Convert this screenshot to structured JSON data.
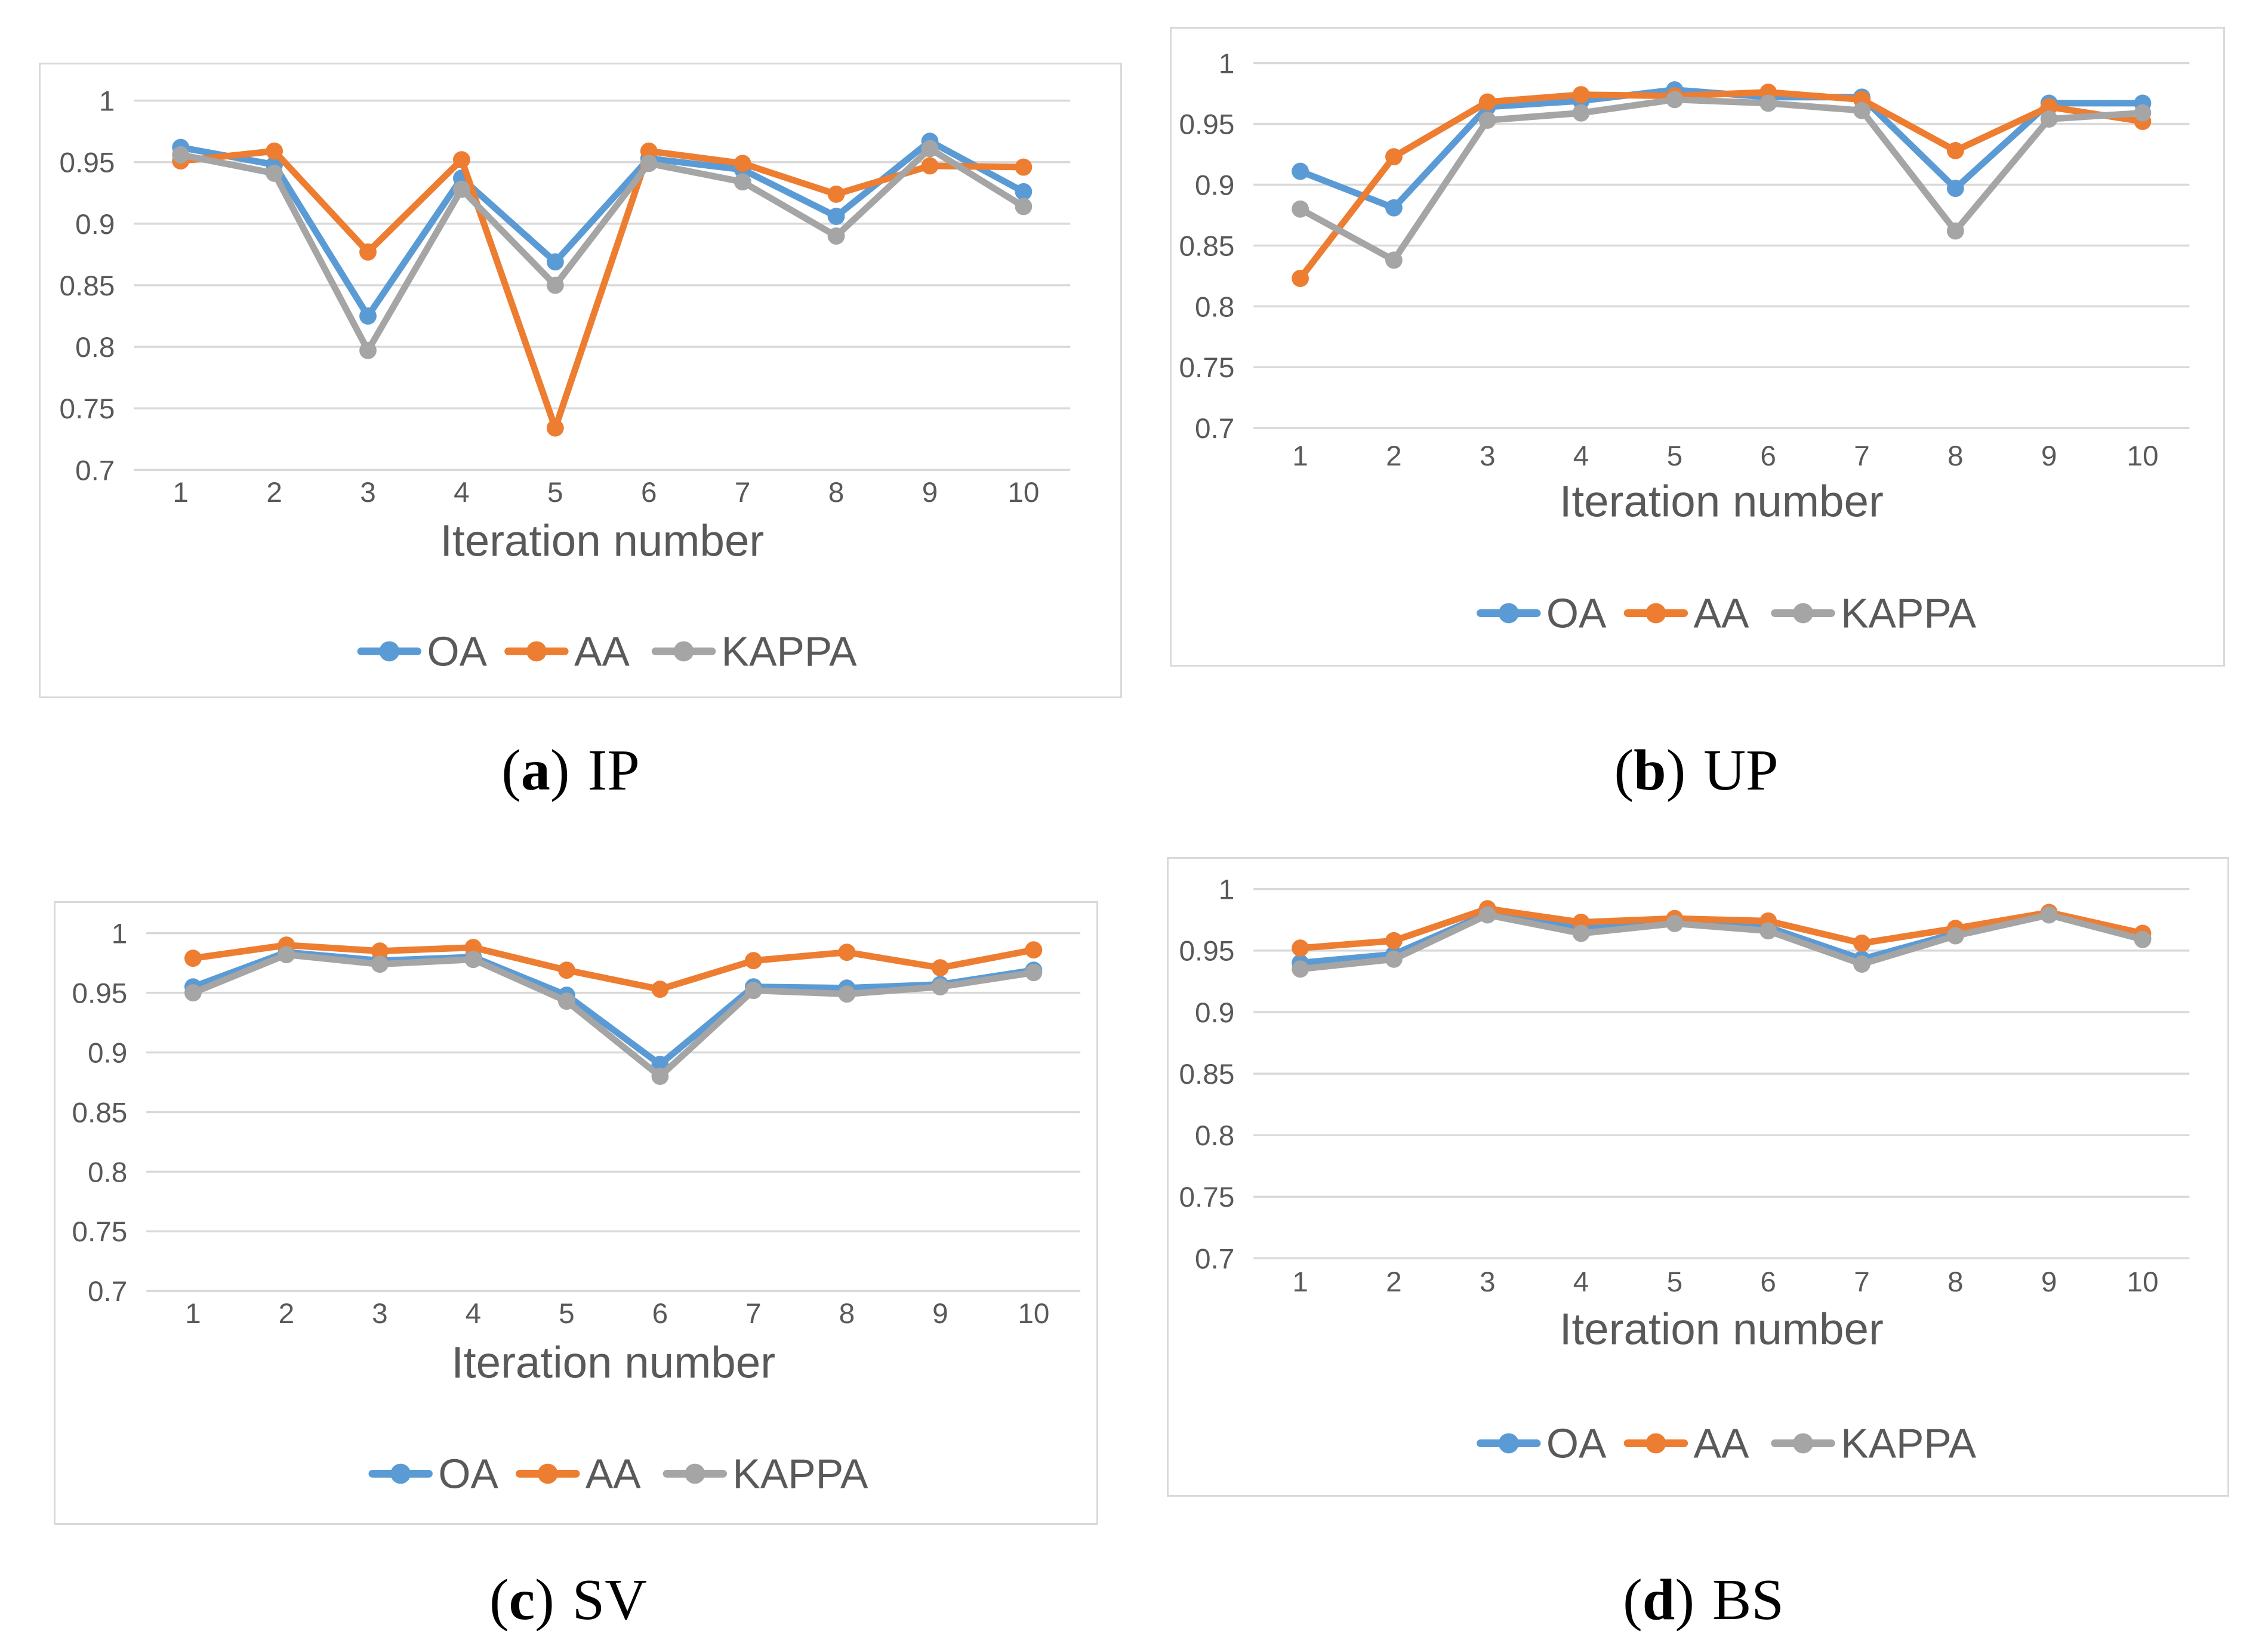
{
  "figure": {
    "background": "#FFFFFF",
    "captions": [
      {
        "prefix": "(",
        "letter": "a",
        "suffix": ")",
        "label": "IP"
      },
      {
        "prefix": "(",
        "letter": "b",
        "suffix": ")",
        "label": "UP"
      },
      {
        "prefix": "(",
        "letter": "c",
        "suffix": ")",
        "label": "SV"
      },
      {
        "prefix": "(",
        "letter": "d",
        "suffix": ")",
        "label": "BS"
      }
    ]
  },
  "style": {
    "grid_color": "#D9D9D9",
    "axis_text_color": "#595959",
    "panel_border_color": "#D9D9D9",
    "caption_color": "#000000",
    "series_colors": {
      "OA": "#5B9BD5",
      "AA": "#ED7D31",
      "KAPPA": "#A5A5A5"
    }
  },
  "chart_data": [
    {
      "type": "line",
      "panel": "a",
      "caption": "(a) IP",
      "xlabel": "Iteration number",
      "x": [
        1,
        2,
        3,
        4,
        5,
        6,
        7,
        8,
        9,
        10
      ],
      "ylim": [
        0.7,
        1.0
      ],
      "yticks": [
        1,
        0.95,
        0.9,
        0.85,
        0.8,
        0.75,
        0.7
      ],
      "ytick_labels": [
        "1",
        "0.95",
        "0.9",
        "0.85",
        "0.8",
        "0.75",
        "0.7"
      ],
      "grid": true,
      "legend_position": "bottom",
      "marker": "circle",
      "series": [
        {
          "name": "OA",
          "color": "#5B9BD5",
          "values": [
            0.962,
            0.948,
            0.825,
            0.937,
            0.869,
            0.953,
            0.944,
            0.906,
            0.967,
            0.926
          ]
        },
        {
          "name": "AA",
          "color": "#ED7D31",
          "values": [
            0.951,
            0.959,
            0.877,
            0.952,
            0.734,
            0.959,
            0.949,
            0.924,
            0.947,
            0.946
          ]
        },
        {
          "name": "KAPPA",
          "color": "#A5A5A5",
          "values": [
            0.956,
            0.941,
            0.797,
            0.928,
            0.85,
            0.949,
            0.934,
            0.89,
            0.961,
            0.914
          ]
        }
      ]
    },
    {
      "type": "line",
      "panel": "b",
      "caption": "(b) UP",
      "xlabel": "Iteration number",
      "x": [
        1,
        2,
        3,
        4,
        5,
        6,
        7,
        8,
        9,
        10
      ],
      "ylim": [
        0.7,
        1.0
      ],
      "yticks": [
        1,
        0.95,
        0.9,
        0.85,
        0.8,
        0.75,
        0.7
      ],
      "ytick_labels": [
        "1",
        "0.95",
        "0.9",
        "0.85",
        "0.8",
        "0.75",
        "0.7"
      ],
      "grid": true,
      "legend_position": "bottom",
      "marker": "circle",
      "series": [
        {
          "name": "OA",
          "color": "#5B9BD5",
          "values": [
            0.911,
            0.881,
            0.964,
            0.969,
            0.978,
            0.972,
            0.972,
            0.897,
            0.967,
            0.967
          ]
        },
        {
          "name": "AA",
          "color": "#ED7D31",
          "values": [
            0.823,
            0.923,
            0.968,
            0.974,
            0.973,
            0.976,
            0.97,
            0.928,
            0.964,
            0.952
          ]
        },
        {
          "name": "KAPPA",
          "color": "#A5A5A5",
          "values": [
            0.88,
            0.838,
            0.953,
            0.959,
            0.97,
            0.967,
            0.961,
            0.862,
            0.954,
            0.959
          ]
        }
      ]
    },
    {
      "type": "line",
      "panel": "c",
      "caption": "(c) SV",
      "xlabel": "Iteration number",
      "x": [
        1,
        2,
        3,
        4,
        5,
        6,
        7,
        8,
        9,
        10
      ],
      "ylim": [
        0.7,
        1.0
      ],
      "yticks": [
        1,
        0.95,
        0.9,
        0.85,
        0.8,
        0.75,
        0.7
      ],
      "ytick_labels": [
        "1",
        "0.95",
        "0.9",
        "0.85",
        "0.8",
        "0.75",
        "0.7"
      ],
      "grid": true,
      "legend_position": "bottom",
      "marker": "circle",
      "series": [
        {
          "name": "OA",
          "color": "#5B9BD5",
          "values": [
            0.955,
            0.984,
            0.977,
            0.98,
            0.948,
            0.89,
            0.955,
            0.954,
            0.957,
            0.969
          ]
        },
        {
          "name": "AA",
          "color": "#ED7D31",
          "values": [
            0.979,
            0.99,
            0.985,
            0.988,
            0.969,
            0.953,
            0.977,
            0.984,
            0.971,
            0.986
          ]
        },
        {
          "name": "KAPPA",
          "color": "#A5A5A5",
          "values": [
            0.95,
            0.982,
            0.974,
            0.978,
            0.943,
            0.88,
            0.952,
            0.949,
            0.955,
            0.967
          ]
        }
      ]
    },
    {
      "type": "line",
      "panel": "d",
      "caption": "(d) BS",
      "xlabel": "Iteration number",
      "x": [
        1,
        2,
        3,
        4,
        5,
        6,
        7,
        8,
        9,
        10
      ],
      "ylim": [
        0.7,
        1.0
      ],
      "yticks": [
        1,
        0.95,
        0.9,
        0.85,
        0.8,
        0.75,
        0.7
      ],
      "ytick_labels": [
        "1",
        "0.95",
        "0.9",
        "0.85",
        "0.8",
        "0.75",
        "0.7"
      ],
      "grid": true,
      "legend_position": "bottom",
      "marker": "circle",
      "series": [
        {
          "name": "OA",
          "color": "#5B9BD5",
          "values": [
            0.94,
            0.947,
            0.98,
            0.968,
            0.974,
            0.969,
            0.943,
            0.964,
            0.98,
            0.96
          ]
        },
        {
          "name": "AA",
          "color": "#ED7D31",
          "values": [
            0.952,
            0.958,
            0.984,
            0.973,
            0.976,
            0.974,
            0.956,
            0.968,
            0.981,
            0.964
          ]
        },
        {
          "name": "KAPPA",
          "color": "#A5A5A5",
          "values": [
            0.935,
            0.943,
            0.979,
            0.964,
            0.972,
            0.966,
            0.939,
            0.962,
            0.979,
            0.959
          ]
        }
      ]
    }
  ]
}
